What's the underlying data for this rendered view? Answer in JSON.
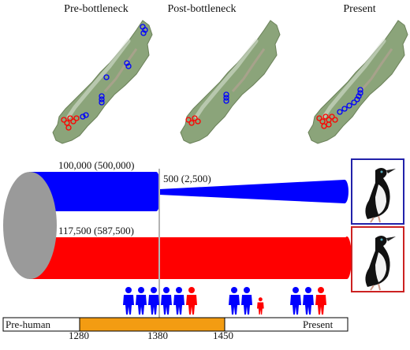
{
  "maps": {
    "titles": [
      "Pre-bottleneck",
      "Post-bottleneck",
      "Present"
    ]
  },
  "populations": {
    "blue_start_label": "100,000 (500,000)",
    "blue_bottleneck_label": "500 (2,500)",
    "red_start_label": "117,500 (587,500)"
  },
  "timeline": {
    "start_label": "Pre-human",
    "end_label": "Present",
    "ticks": [
      "1280",
      "1380",
      "1450"
    ]
  },
  "colors": {
    "blue": "#0000ff",
    "red": "#ff0000",
    "cylinder_end": "#9a9a9a",
    "timeline_highlight": "#f39c12",
    "blue_frame": "#2222aa",
    "red_frame": "#cc2222"
  },
  "icons": {
    "people": "person-icon",
    "birds": "cormorant-icon"
  },
  "people_groups": [
    [
      "blue",
      "blue",
      "blue",
      "blue",
      "blue",
      "red"
    ],
    [
      "blue",
      "blue",
      "red-small"
    ],
    [
      "blue",
      "blue",
      "red"
    ]
  ]
}
